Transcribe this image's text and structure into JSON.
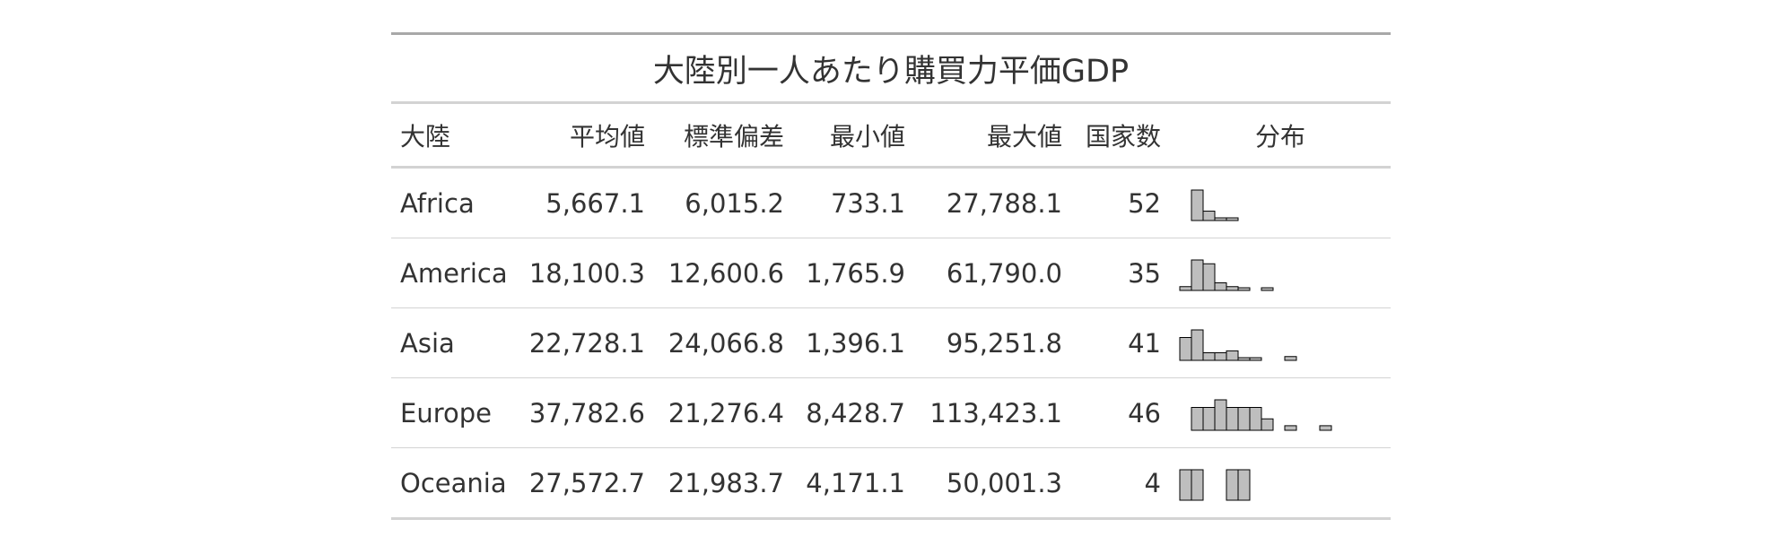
{
  "title": "大陸別一人あたり購買力平価GDP",
  "columns": {
    "continent": "大陸",
    "mean": "平均値",
    "sd": "標準偏差",
    "min": "最小値",
    "max": "最大値",
    "count": "国家数",
    "distribution": "分布"
  },
  "rows": [
    {
      "continent": "Africa",
      "mean": "5,667.1",
      "sd": "6,015.2",
      "min": "733.1",
      "max": "27,788.1",
      "count": "52",
      "hist": [
        0,
        26,
        8,
        2,
        1,
        0,
        0,
        0,
        0,
        0,
        0,
        0,
        0
      ]
    },
    {
      "continent": "America",
      "mean": "18,100.3",
      "sd": "12,600.6",
      "min": "1,765.9",
      "max": "61,790.0",
      "count": "35",
      "hist": [
        1,
        8,
        7,
        2,
        1,
        0.5,
        0,
        0.5,
        0,
        0,
        0,
        0,
        0
      ]
    },
    {
      "continent": "Asia",
      "mean": "22,728.1",
      "sd": "24,066.8",
      "min": "1,396.1",
      "max": "95,251.8",
      "count": "41",
      "hist": [
        6,
        8,
        2,
        2,
        2.5,
        0.6,
        0.6,
        0,
        0,
        1,
        0,
        0,
        0
      ]
    },
    {
      "continent": "Europe",
      "mean": "37,782.6",
      "sd": "21,276.4",
      "min": "8,428.7",
      "max": "113,423.1",
      "count": "46",
      "hist": [
        0,
        3,
        3,
        4,
        3,
        3,
        3,
        1.5,
        0,
        0.6,
        0,
        0,
        0.6
      ]
    },
    {
      "continent": "Oceania",
      "mean": "27,572.7",
      "sd": "21,983.7",
      "min": "4,171.1",
      "max": "50,001.3",
      "count": "4",
      "hist": [
        1,
        1,
        0,
        0,
        1,
        1,
        0,
        0,
        0,
        0,
        0,
        0,
        0
      ]
    }
  ]
}
